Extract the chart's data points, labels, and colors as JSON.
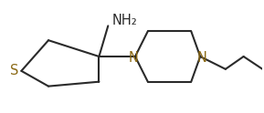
{
  "bg_color": "#ffffff",
  "line_color": "#2a2a2a",
  "lw": 1.5,
  "S_label": "S",
  "N_label": "N",
  "NH2_label": "NH₂",
  "font_size_atoms": 10.5,
  "font_size_nh2": 10.5,
  "figsize": [
    2.89,
    1.24
  ],
  "dpi": 100
}
